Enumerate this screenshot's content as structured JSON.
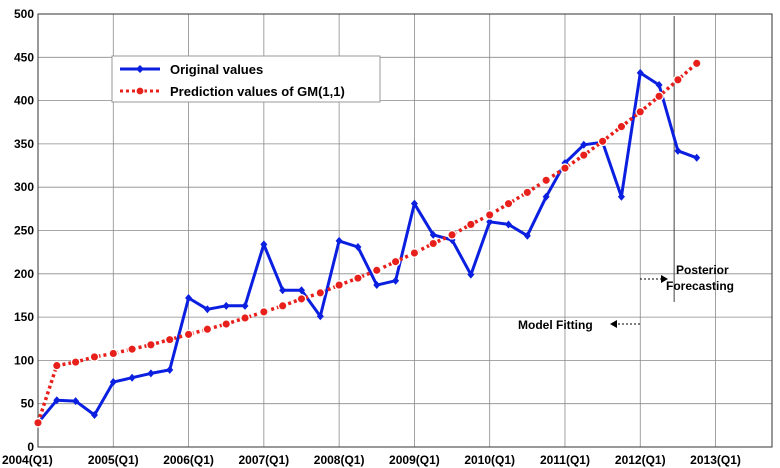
{
  "chart_data": {
    "type": "line",
    "x_tick_labels": [
      "2004(Q1)",
      "2005(Q1)",
      "2006(Q1)",
      "2007(Q1)",
      "2008(Q1)",
      "2009(Q1)",
      "2010(Q1)",
      "2011(Q1)",
      "2012(Q1)",
      "2013(Q1)"
    ],
    "y_ticks": [
      0,
      50,
      100,
      150,
      200,
      250,
      300,
      350,
      400,
      450,
      500
    ],
    "ylim": [
      0,
      500
    ],
    "xlim": [
      0,
      39
    ],
    "grid": true,
    "legend_position": "top-left",
    "series": [
      {
        "name": "Original values",
        "color": "#0a1fe0",
        "marker": "diamond",
        "x": [
          0,
          1,
          2,
          3,
          4,
          5,
          6,
          7,
          8,
          9,
          10,
          11,
          12,
          13,
          14,
          15,
          16,
          17,
          18,
          19,
          20,
          21,
          22,
          23,
          24,
          25,
          26,
          27,
          28,
          29,
          30,
          31,
          32,
          33,
          34,
          35
        ],
        "values": [
          28,
          54,
          53,
          37,
          75,
          80,
          85,
          89,
          172,
          159,
          163,
          163,
          234,
          181,
          181,
          151,
          238,
          231,
          187,
          192,
          281,
          245,
          239,
          199,
          260,
          257,
          244,
          289,
          328,
          349,
          352,
          289,
          432,
          418,
          342,
          334
        ]
      },
      {
        "name": "Prediction values of GM(1,1)",
        "color": "#e8201c",
        "marker": "circle",
        "x": [
          0,
          1,
          2,
          3,
          4,
          5,
          6,
          7,
          8,
          9,
          10,
          11,
          12,
          13,
          14,
          15,
          16,
          17,
          18,
          19,
          20,
          21,
          22,
          23,
          24,
          25,
          26,
          27,
          28,
          29,
          30,
          31,
          32,
          33,
          34,
          35
        ],
        "values": [
          28,
          94,
          98,
          104,
          108,
          113,
          118,
          124,
          130,
          136,
          142,
          149,
          156,
          163,
          171,
          178,
          187,
          195,
          204,
          214,
          224,
          235,
          245,
          257,
          268,
          281,
          294,
          308,
          322,
          337,
          353,
          370,
          387,
          405,
          424,
          443
        ]
      }
    ],
    "divider_x": 33.8,
    "annotations": {
      "model_fitting": "Model Fitting",
      "posterior_line1": "Posterior",
      "posterior_line2": "Forecasting"
    }
  }
}
